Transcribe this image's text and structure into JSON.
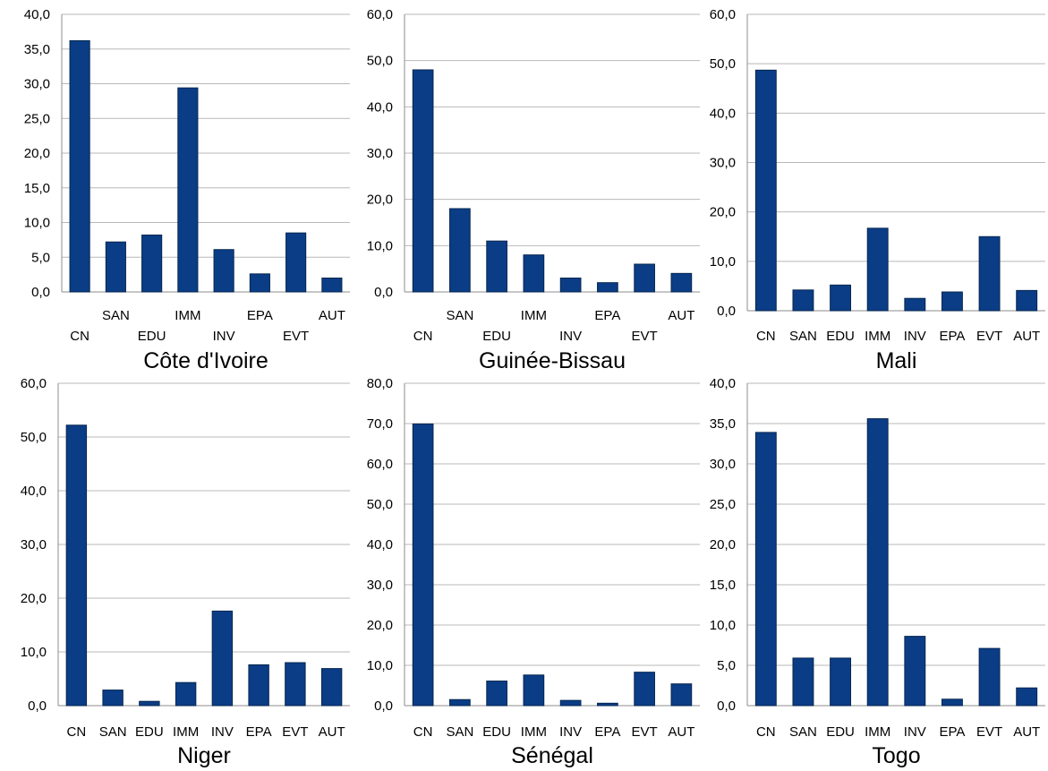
{
  "bar_color": "#0b3d86",
  "chart_data": [
    {
      "type": "bar",
      "title": "Côte d'Ivoire",
      "categories": [
        "CN",
        "SAN",
        "EDU",
        "IMM",
        "INV",
        "EPA",
        "EVT",
        "AUT"
      ],
      "values": [
        36.2,
        7.2,
        8.2,
        29.4,
        6.1,
        2.6,
        8.5,
        2.0
      ],
      "ylim": [
        0,
        40
      ],
      "yticks": [
        "0,0",
        "5,0",
        "10,0",
        "15,0",
        "20,0",
        "25,0",
        "30,0",
        "35,0",
        "40,0"
      ],
      "labels_staggered": true,
      "grid": true
    },
    {
      "type": "bar",
      "title": "Guinée-Bissau",
      "categories": [
        "CN",
        "SAN",
        "EDU",
        "IMM",
        "INV",
        "EPA",
        "EVT",
        "AUT"
      ],
      "values": [
        48.0,
        18.0,
        11.0,
        8.0,
        3.0,
        2.0,
        6.0,
        4.0
      ],
      "ylim": [
        0,
        60
      ],
      "yticks": [
        "0,0",
        "10,0",
        "20,0",
        "30,0",
        "40,0",
        "50,0",
        "60,0"
      ],
      "labels_staggered": true,
      "grid": true
    },
    {
      "type": "bar",
      "title": "Mali",
      "categories": [
        "CN",
        "SAN",
        "EDU",
        "IMM",
        "INV",
        "EPA",
        "EVT",
        "AUT"
      ],
      "values": [
        48.7,
        4.2,
        5.2,
        16.7,
        2.5,
        3.8,
        15.0,
        4.1
      ],
      "ylim": [
        0,
        60
      ],
      "yticks": [
        "0,0",
        "10,0",
        "20,0",
        "30,0",
        "40,0",
        "50,0",
        "60,0"
      ],
      "labels_staggered": false,
      "grid": true
    },
    {
      "type": "bar",
      "title": "Niger",
      "categories": [
        "CN",
        "SAN",
        "EDU",
        "IMM",
        "INV",
        "EPA",
        "EVT",
        "AUT"
      ],
      "values": [
        52.2,
        2.9,
        0.8,
        4.3,
        17.6,
        7.6,
        8.0,
        6.9
      ],
      "ylim": [
        0,
        60
      ],
      "yticks": [
        "0,0",
        "10,0",
        "20,0",
        "30,0",
        "40,0",
        "50,0",
        "60,0"
      ],
      "labels_staggered": false,
      "grid": true
    },
    {
      "type": "bar",
      "title": "Sénégal",
      "categories": [
        "CN",
        "SAN",
        "EDU",
        "IMM",
        "INV",
        "EPA",
        "EVT",
        "AUT"
      ],
      "values": [
        69.9,
        1.5,
        6.1,
        7.6,
        1.3,
        0.6,
        8.3,
        5.4
      ],
      "ylim": [
        0,
        80
      ],
      "yticks": [
        "0,0",
        "10,0",
        "20,0",
        "30,0",
        "40,0",
        "50,0",
        "60,0",
        "70,0",
        "80,0"
      ],
      "labels_staggered": false,
      "grid": true
    },
    {
      "type": "bar",
      "title": "Togo",
      "categories": [
        "CN",
        "SAN",
        "EDU",
        "IMM",
        "INV",
        "EPA",
        "EVT",
        "AUT"
      ],
      "values": [
        33.9,
        5.9,
        5.9,
        35.6,
        8.6,
        0.8,
        7.1,
        2.2
      ],
      "ylim": [
        0,
        40
      ],
      "yticks": [
        "0,0",
        "5,0",
        "10,0",
        "15,0",
        "20,0",
        "25,0",
        "30,0",
        "35,0",
        "40,0"
      ],
      "labels_staggered": false,
      "grid": true
    }
  ]
}
